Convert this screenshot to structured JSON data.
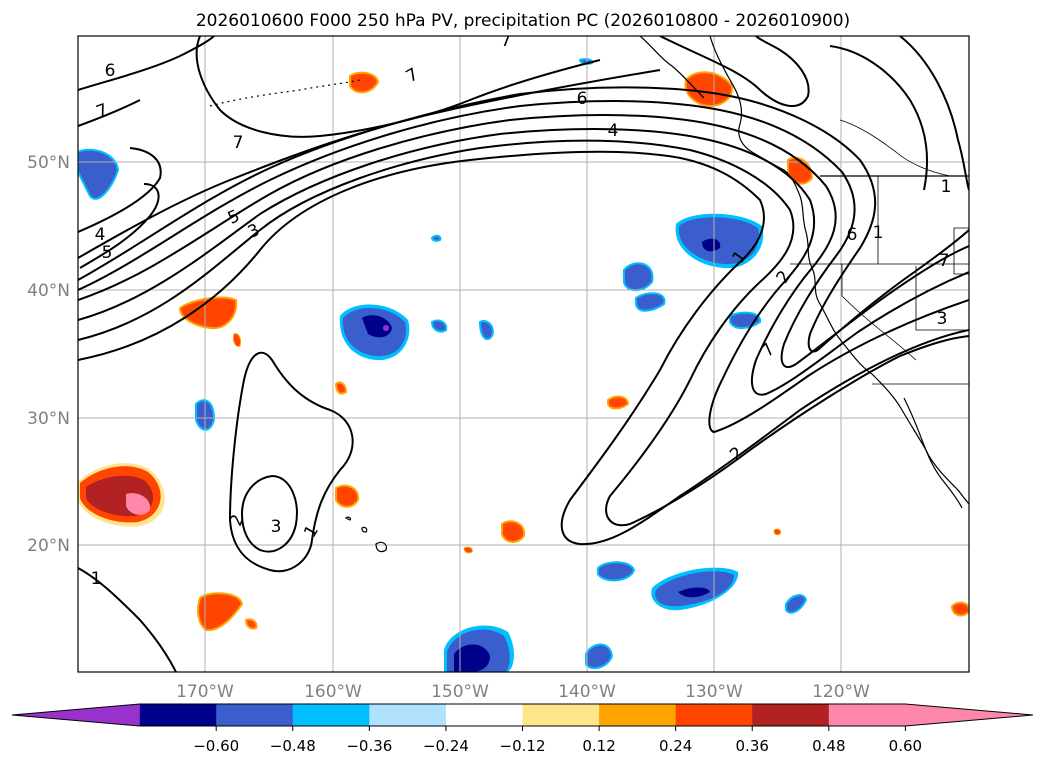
{
  "title": "2026010600 F000 250 hPa PV, precipitation PC (2026010800 - 2026010900)",
  "map": {
    "lon_ticks": [
      "170°W",
      "160°W",
      "150°W",
      "140°W",
      "130°W",
      "120°W"
    ],
    "lat_ticks": [
      "50°N",
      "40°N",
      "30°N",
      "20°N"
    ],
    "contour_labels": [
      "6",
      "7",
      "7",
      "7",
      "6",
      "4",
      "5",
      "3",
      "4",
      "5",
      "1",
      "6",
      "1",
      "2",
      "7",
      "3",
      "1",
      "7",
      "2",
      "2",
      "3",
      "1",
      "1",
      "7"
    ]
  },
  "colorbar": {
    "colors": [
      "#9932cc",
      "#00008b",
      "#3a5fcd",
      "#00bfff",
      "#b0e2ff",
      "#ffffff",
      "#fde68a",
      "#ffa500",
      "#ff4500",
      "#b22222",
      "#ff88aa",
      "#ff88aa"
    ],
    "tick_labels": [
      "−0.60",
      "−0.48",
      "−0.36",
      "−0.24",
      "−0.12",
      "0.12",
      "0.24",
      "0.36",
      "0.48",
      "0.60"
    ]
  }
}
